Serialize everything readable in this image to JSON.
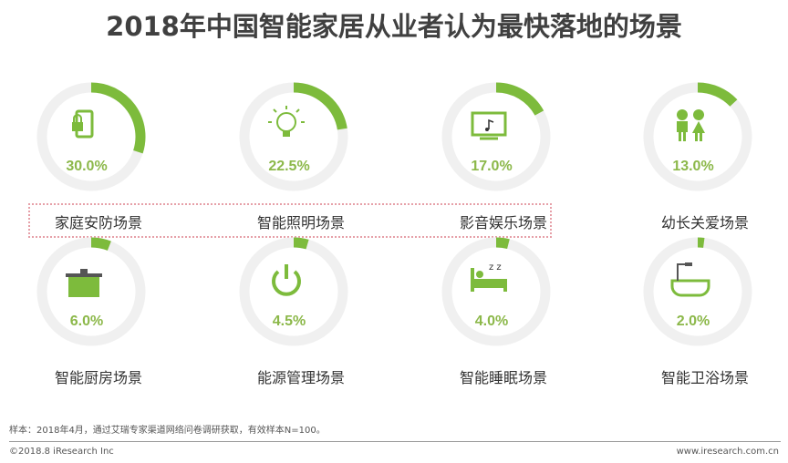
{
  "title": "2018年中国智能家居从业者认为最快落地的场景",
  "chart_data": {
    "type": "pie",
    "title": "2018年中国智能家居从业者认为最快落地的场景",
    "categories": [
      "家庭安防场景",
      "智能照明场景",
      "影音娱乐场景",
      "幼长关爱场景",
      "智能厨房场景",
      "能源管理场景",
      "智能睡眠场景",
      "智能卫浴场景"
    ],
    "values": [
      30.0,
      22.5,
      17.0,
      13.0,
      6.0,
      4.5,
      4.0,
      2.0
    ],
    "labels": [
      "30.0%",
      "22.5%",
      "17.0%",
      "13.0%",
      "6.0%",
      "4.5%",
      "4.0%",
      "2.0%"
    ],
    "icons": [
      "phone-lock-icon",
      "lightbulb-icon",
      "tv-music-icon",
      "children-icon",
      "pot-icon",
      "power-icon",
      "bed-sleep-icon",
      "bathtub-icon"
    ],
    "highlighted": [
      "家庭安防场景",
      "智能照明场景",
      "影音娱乐场景"
    ],
    "colors": {
      "arc": "#7dbb3c",
      "track": "#f0f0f0",
      "text": "#8cb84a"
    }
  },
  "footer": {
    "note": "样本：2018年4月，通过艾瑞专家渠道网络问卷调研获取，有效样本N=100。",
    "copyright": "©2018.8 iResearch Inc",
    "site": "www.iresearch.com.cn"
  }
}
